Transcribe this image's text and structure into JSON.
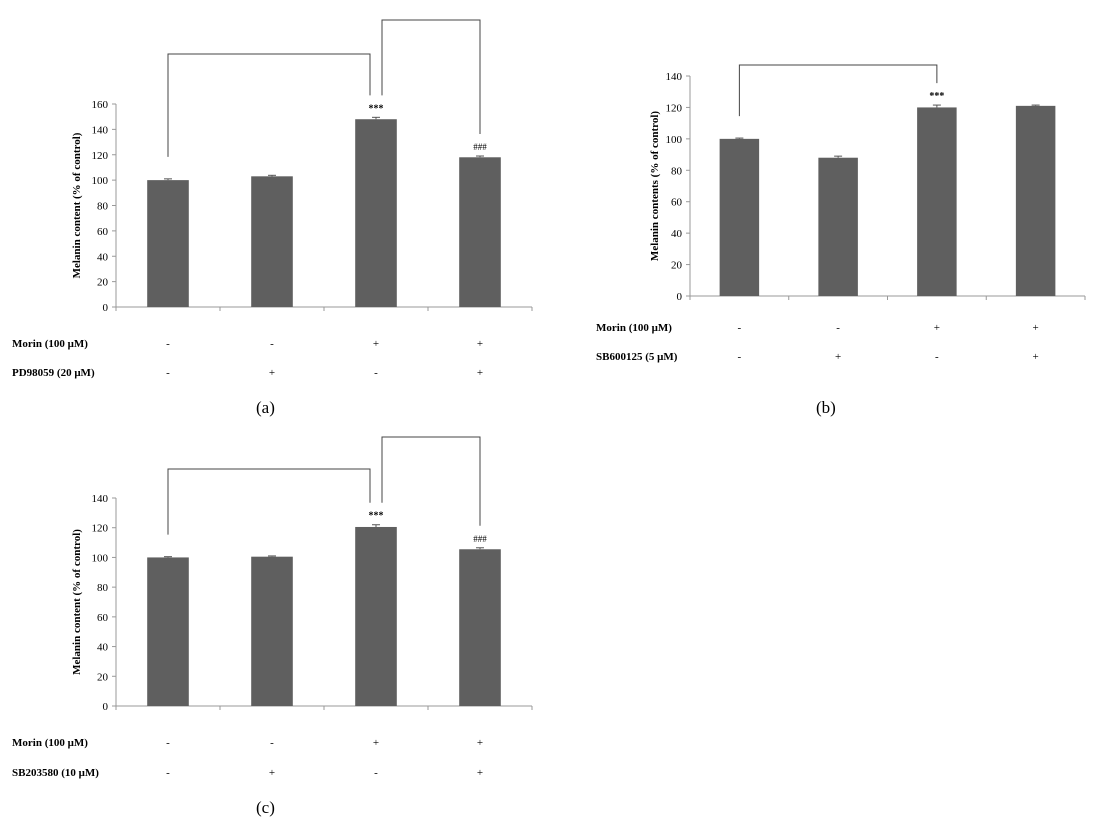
{
  "chart_data": [
    {
      "id": "a",
      "type": "bar",
      "panel_label": "(a)",
      "ylabel": "Melanin content (% of control)",
      "ylim": [
        0,
        160
      ],
      "ytick_step": 20,
      "values": [
        100,
        103,
        148,
        118
      ],
      "errors": [
        1,
        0.8,
        1.5,
        1
      ],
      "significance": [
        "",
        "",
        "***",
        "###"
      ],
      "conditions": [
        {
          "label": "Morin (100 μM)",
          "signs": [
            "-",
            "-",
            "+",
            "+"
          ]
        },
        {
          "label": "PD98059 (20 μM)",
          "signs": [
            "-",
            "+",
            "-",
            "+"
          ]
        }
      ],
      "brackets": [
        [
          0,
          2
        ],
        [
          2,
          3
        ]
      ],
      "bar_color": "#5f5f5f"
    },
    {
      "id": "b",
      "type": "bar",
      "panel_label": "(b)",
      "ylabel": "Melanin contents (% of control)",
      "ylim": [
        0,
        140
      ],
      "ytick_step": 20,
      "values": [
        100,
        88,
        120,
        121
      ],
      "errors": [
        0.5,
        1,
        1.5,
        0.5
      ],
      "significance": [
        "",
        "",
        "***",
        ""
      ],
      "conditions": [
        {
          "label": "Morin (100 μM)",
          "signs": [
            "-",
            "-",
            "+",
            "+"
          ]
        },
        {
          "label": "SB600125 (5 μM)",
          "signs": [
            "-",
            "+",
            "-",
            "+"
          ]
        }
      ],
      "brackets": [
        [
          0,
          2
        ]
      ],
      "bar_color": "#5f5f5f"
    },
    {
      "id": "c",
      "type": "bar",
      "panel_label": "(c)",
      "ylabel": "Melanin content (% of control)",
      "ylim": [
        0,
        140
      ],
      "ytick_step": 20,
      "values": [
        100,
        100.5,
        120.5,
        105.5
      ],
      "errors": [
        0.5,
        0.5,
        1.5,
        1
      ],
      "significance": [
        "",
        "",
        "***",
        "###"
      ],
      "conditions": [
        {
          "label": "Morin (100 μM)",
          "signs": [
            "-",
            "-",
            "+",
            "+"
          ]
        },
        {
          "label": "SB203580 (10 μM)",
          "signs": [
            "-",
            "+",
            "-",
            "+"
          ]
        }
      ],
      "brackets": [
        [
          0,
          2
        ],
        [
          2,
          3
        ]
      ],
      "bar_color": "#5f5f5f"
    }
  ]
}
